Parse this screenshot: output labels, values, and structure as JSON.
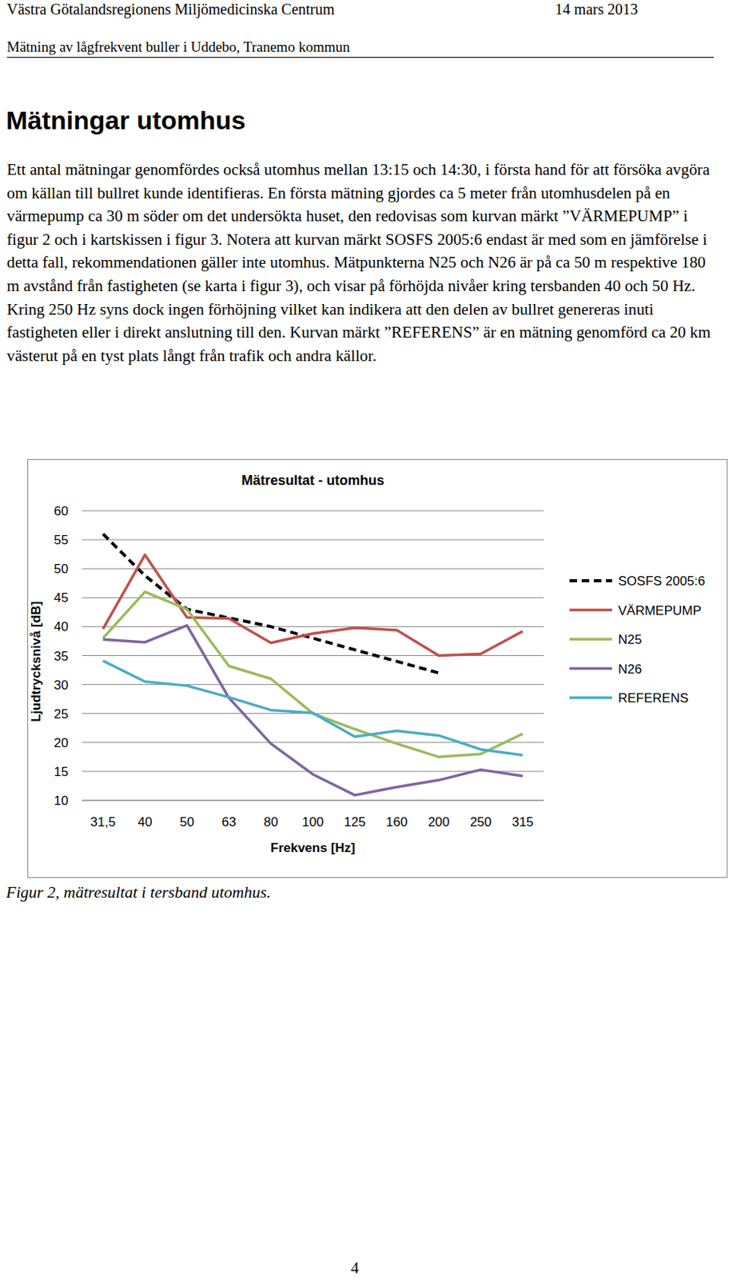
{
  "header": {
    "left": "Västra Götalandsregionens Miljömedicinska Centrum",
    "right": "14 mars 2013",
    "subtitle": "Mätning av lågfrekvent buller i Uddebo, Tranemo kommun"
  },
  "heading": "Mätningar utomhus",
  "paragraph": "Ett antal mätningar genomfördes också utomhus mellan 13:15 och 14:30, i första hand för att försöka avgöra om källan till bullret kunde identifieras. En första mätning gjordes ca 5 meter från utomhusdelen på en värmepump ca 30 m söder om det undersökta huset, den redovisas som kurvan märkt ”VÄRMEPUMP” i figur 2 och i kartskissen i figur 3. Notera att kurvan märkt SOSFS 2005:6 endast är med som en jämförelse i detta fall, rekommendationen gäller inte utomhus. Mätpunkterna N25 och N26 är på ca 50 m respektive 180 m avstånd från fastigheten (se karta i figur 3), och visar på förhöjda nivåer kring tersbanden 40 och 50 Hz. Kring 250 Hz syns dock ingen förhöjning vilket kan indikera att den delen av bullret genereras inuti fastigheten eller i direkt anslutning till den. Kurvan märkt ”REFERENS” är en mätning genomförd ca 20 km västerut på en tyst plats långt från trafik och andra källor.",
  "chart_data": {
    "type": "line",
    "title": "Mätresultat - utomhus",
    "x_label": "Frekvens [Hz]",
    "y_label": "Ljudtrycksnivå [dB]",
    "categories": [
      "31,5",
      "40",
      "50",
      "63",
      "80",
      "100",
      "125",
      "160",
      "200",
      "250",
      "315"
    ],
    "series": [
      {
        "name": "SOSFS 2005:6",
        "color": "#000000",
        "line_style": "dashed",
        "values": [
          56,
          48.8,
          43,
          41.5,
          40,
          38,
          36,
          34,
          32,
          null,
          null
        ]
      },
      {
        "name": "VÄRMEPUMP",
        "color": "#c0504d",
        "line_style": "solid",
        "values": [
          39.6,
          52.4,
          41.6,
          41.4,
          37.2,
          38.8,
          39.8,
          39.4,
          35.0,
          35.3,
          39.2
        ]
      },
      {
        "name": "N25",
        "color": "#9bbb59",
        "line_style": "solid",
        "values": [
          38,
          46,
          43,
          33.2,
          31,
          25,
          22.3,
          19.8,
          17.5,
          18,
          21.5
        ]
      },
      {
        "name": "N26",
        "color": "#8064a2",
        "line_style": "solid",
        "values": [
          37.8,
          37.3,
          40.2,
          27.7,
          19.8,
          14.5,
          10.9,
          12.3,
          13.5,
          15.3,
          14.2
        ]
      },
      {
        "name": "REFERENS",
        "color": "#4bacc6",
        "line_style": "solid",
        "values": [
          34.1,
          30.5,
          29.8,
          27.8,
          25.6,
          25.1,
          21,
          22,
          21.2,
          18.8,
          17.8
        ]
      }
    ],
    "ylim": [
      10,
      60
    ],
    "yticks": [
      10,
      15,
      20,
      25,
      30,
      35,
      40,
      45,
      50,
      55,
      60
    ],
    "grid": true,
    "legend": "right"
  },
  "caption": "Figur 2, mätresultat i tersband utomhus.",
  "page_number": "4"
}
